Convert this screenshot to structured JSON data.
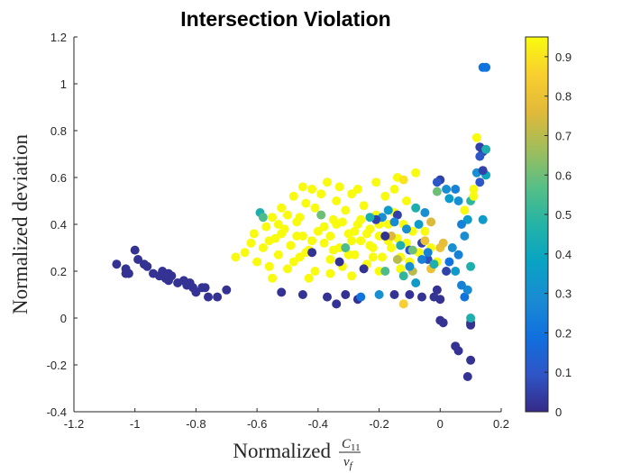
{
  "chart_data": {
    "type": "scatter",
    "title": "Intersection Violation",
    "xlabel": "Normalized",
    "xlabel_fraction": {
      "numerator": "C",
      "numerator_sub": "11",
      "denominator": "v",
      "denominator_sub": "f"
    },
    "ylabel": "Normalized deviation",
    "xlim": [
      -1.2,
      0.2
    ],
    "ylim": [
      -0.4,
      1.2
    ],
    "x_ticks": [
      "-1.2",
      "-1",
      "-0.8",
      "-0.6",
      "-0.4",
      "-0.2",
      "0",
      "0.2"
    ],
    "y_ticks": [
      "-0.4",
      "-0.2",
      "0",
      "0.2",
      "0.4",
      "0.6",
      "0.8",
      "1",
      "1.2"
    ],
    "colorbar": {
      "min": 0,
      "max": 0.95,
      "colormap": "parula",
      "ticks": [
        "0",
        "0.1",
        "0.2",
        "0.3",
        "0.4",
        "0.5",
        "0.6",
        "0.7",
        "0.8",
        "0.9"
      ]
    },
    "grid": false,
    "points": [
      {
        "x": -1.06,
        "y": 0.23,
        "c": 0.02
      },
      {
        "x": -1.03,
        "y": 0.21,
        "c": 0.02
      },
      {
        "x": -1.03,
        "y": 0.19,
        "c": 0.02
      },
      {
        "x": -1.02,
        "y": 0.19,
        "c": 0.02
      },
      {
        "x": -1.0,
        "y": 0.29,
        "c": 0.02
      },
      {
        "x": -0.99,
        "y": 0.25,
        "c": 0.02
      },
      {
        "x": -0.97,
        "y": 0.23,
        "c": 0.02
      },
      {
        "x": -0.96,
        "y": 0.22,
        "c": 0.02
      },
      {
        "x": -0.94,
        "y": 0.19,
        "c": 0.02
      },
      {
        "x": -0.92,
        "y": 0.18,
        "c": 0.02
      },
      {
        "x": -0.91,
        "y": 0.2,
        "c": 0.02
      },
      {
        "x": -0.9,
        "y": 0.17,
        "c": 0.02
      },
      {
        "x": -0.89,
        "y": 0.19,
        "c": 0.02
      },
      {
        "x": -0.89,
        "y": 0.16,
        "c": 0.02
      },
      {
        "x": -0.88,
        "y": 0.18,
        "c": 0.02
      },
      {
        "x": -0.86,
        "y": 0.15,
        "c": 0.02
      },
      {
        "x": -0.84,
        "y": 0.16,
        "c": 0.02
      },
      {
        "x": -0.83,
        "y": 0.14,
        "c": 0.02
      },
      {
        "x": -0.82,
        "y": 0.15,
        "c": 0.02
      },
      {
        "x": -0.81,
        "y": 0.13,
        "c": 0.02
      },
      {
        "x": -0.8,
        "y": 0.11,
        "c": 0.02
      },
      {
        "x": -0.78,
        "y": 0.13,
        "c": 0.02
      },
      {
        "x": -0.77,
        "y": 0.13,
        "c": 0.02
      },
      {
        "x": -0.76,
        "y": 0.09,
        "c": 0.02
      },
      {
        "x": -0.73,
        "y": 0.09,
        "c": 0.02
      },
      {
        "x": -0.7,
        "y": 0.12,
        "c": 0.02
      },
      {
        "x": -0.67,
        "y": 0.26,
        "c": 0.95
      },
      {
        "x": -0.64,
        "y": 0.28,
        "c": 0.95
      },
      {
        "x": -0.62,
        "y": 0.32,
        "c": 0.95
      },
      {
        "x": -0.61,
        "y": 0.36,
        "c": 0.95
      },
      {
        "x": -0.6,
        "y": 0.24,
        "c": 0.95
      },
      {
        "x": -0.59,
        "y": 0.45,
        "c": 0.45
      },
      {
        "x": -0.58,
        "y": 0.3,
        "c": 0.95
      },
      {
        "x": -0.57,
        "y": 0.39,
        "c": 0.95
      },
      {
        "x": -0.56,
        "y": 0.22,
        "c": 0.95
      },
      {
        "x": -0.55,
        "y": 0.43,
        "c": 0.95
      },
      {
        "x": -0.54,
        "y": 0.34,
        "c": 0.95
      },
      {
        "x": -0.53,
        "y": 0.27,
        "c": 0.95
      },
      {
        "x": -0.52,
        "y": 0.47,
        "c": 0.95
      },
      {
        "x": -0.51,
        "y": 0.38,
        "c": 0.95
      },
      {
        "x": -0.5,
        "y": 0.21,
        "c": 0.95
      },
      {
        "x": -0.49,
        "y": 0.31,
        "c": 0.95
      },
      {
        "x": -0.48,
        "y": 0.52,
        "c": 0.95
      },
      {
        "x": -0.47,
        "y": 0.41,
        "c": 0.95
      },
      {
        "x": -0.46,
        "y": 0.26,
        "c": 0.95
      },
      {
        "x": -0.45,
        "y": 0.35,
        "c": 0.95
      },
      {
        "x": -0.44,
        "y": 0.49,
        "c": 0.95
      },
      {
        "x": -0.43,
        "y": 0.29,
        "c": 0.95
      },
      {
        "x": -0.42,
        "y": 0.55,
        "c": 0.95
      },
      {
        "x": -0.41,
        "y": 0.2,
        "c": 0.95
      },
      {
        "x": -0.4,
        "y": 0.37,
        "c": 0.95
      },
      {
        "x": -0.39,
        "y": 0.44,
        "c": 0.6
      },
      {
        "x": -0.38,
        "y": 0.32,
        "c": 0.95
      },
      {
        "x": -0.37,
        "y": 0.58,
        "c": 0.95
      },
      {
        "x": -0.36,
        "y": 0.25,
        "c": 0.95
      },
      {
        "x": -0.35,
        "y": 0.42,
        "c": 0.95
      },
      {
        "x": -0.34,
        "y": 0.5,
        "c": 0.95
      },
      {
        "x": -0.33,
        "y": 0.3,
        "c": 0.95
      },
      {
        "x": -0.32,
        "y": 0.22,
        "c": 0.95
      },
      {
        "x": -0.31,
        "y": 0.46,
        "c": 0.95
      },
      {
        "x": -0.3,
        "y": 0.36,
        "c": 0.95
      },
      {
        "x": -0.29,
        "y": 0.53,
        "c": 0.95
      },
      {
        "x": -0.28,
        "y": 0.27,
        "c": 0.95
      },
      {
        "x": -0.27,
        "y": 0.4,
        "c": 0.95
      },
      {
        "x": -0.26,
        "y": 0.33,
        "c": 0.95
      },
      {
        "x": -0.25,
        "y": 0.48,
        "c": 0.95
      },
      {
        "x": -0.24,
        "y": 0.23,
        "c": 0.95
      },
      {
        "x": -0.23,
        "y": 0.38,
        "c": 0.95
      },
      {
        "x": -0.22,
        "y": 0.3,
        "c": 0.95
      },
      {
        "x": -0.21,
        "y": 0.44,
        "c": 0.95
      },
      {
        "x": -0.2,
        "y": 0.35,
        "c": 0.95
      },
      {
        "x": -0.19,
        "y": 0.26,
        "c": 0.95
      },
      {
        "x": -0.18,
        "y": 0.52,
        "c": 0.95
      },
      {
        "x": -0.17,
        "y": 0.4,
        "c": 0.95
      },
      {
        "x": -0.16,
        "y": 0.3,
        "c": 0.95
      },
      {
        "x": -0.15,
        "y": 0.45,
        "c": 0.95
      },
      {
        "x": -0.14,
        "y": 0.34,
        "c": 0.95
      },
      {
        "x": -0.13,
        "y": 0.26,
        "c": 0.95
      },
      {
        "x": -0.12,
        "y": 0.4,
        "c": 0.95
      },
      {
        "x": -0.11,
        "y": 0.32,
        "c": 0.95
      },
      {
        "x": -0.1,
        "y": 0.24,
        "c": 0.95
      },
      {
        "x": -0.09,
        "y": 0.37,
        "c": 0.95
      },
      {
        "x": -0.5,
        "y": 0.44,
        "c": 0.95
      },
      {
        "x": -0.47,
        "y": 0.35,
        "c": 0.95
      },
      {
        "x": -0.44,
        "y": 0.28,
        "c": 0.95
      },
      {
        "x": -0.41,
        "y": 0.47,
        "c": 0.95
      },
      {
        "x": -0.38,
        "y": 0.39,
        "c": 0.95
      },
      {
        "x": -0.35,
        "y": 0.29,
        "c": 0.95
      },
      {
        "x": -0.32,
        "y": 0.41,
        "c": 0.95
      },
      {
        "x": -0.29,
        "y": 0.33,
        "c": 0.95
      },
      {
        "x": -0.26,
        "y": 0.42,
        "c": 0.95
      },
      {
        "x": -0.23,
        "y": 0.31,
        "c": 0.95
      },
      {
        "x": -0.2,
        "y": 0.4,
        "c": 0.95
      },
      {
        "x": -0.17,
        "y": 0.33,
        "c": 0.95
      },
      {
        "x": -0.53,
        "y": 0.4,
        "c": 0.95
      },
      {
        "x": -0.56,
        "y": 0.33,
        "c": 0.95
      },
      {
        "x": -0.48,
        "y": 0.24,
        "c": 0.95
      },
      {
        "x": -0.42,
        "y": 0.33,
        "c": 0.95
      },
      {
        "x": -0.36,
        "y": 0.35,
        "c": 0.95
      },
      {
        "x": -0.3,
        "y": 0.27,
        "c": 0.95
      },
      {
        "x": -0.24,
        "y": 0.36,
        "c": 0.95
      },
      {
        "x": -0.45,
        "y": 0.56,
        "c": 0.95
      },
      {
        "x": -0.39,
        "y": 0.53,
        "c": 0.95
      },
      {
        "x": -0.33,
        "y": 0.56,
        "c": 0.95
      },
      {
        "x": -0.27,
        "y": 0.55,
        "c": 0.95
      },
      {
        "x": -0.21,
        "y": 0.58,
        "c": 0.95
      },
      {
        "x": -0.15,
        "y": 0.55,
        "c": 0.95
      },
      {
        "x": -0.58,
        "y": 0.43,
        "c": 0.55
      },
      {
        "x": -0.52,
        "y": 0.36,
        "c": 0.95
      },
      {
        "x": -0.46,
        "y": 0.43,
        "c": 0.95
      },
      {
        "x": -0.34,
        "y": 0.4,
        "c": 0.95
      },
      {
        "x": -0.28,
        "y": 0.37,
        "c": 0.95
      },
      {
        "x": -0.22,
        "y": 0.26,
        "c": 0.95
      },
      {
        "x": -0.43,
        "y": 0.17,
        "c": 0.95
      },
      {
        "x": -0.36,
        "y": 0.19,
        "c": 0.95
      },
      {
        "x": -0.29,
        "y": 0.18,
        "c": 0.95
      },
      {
        "x": -0.55,
        "y": 0.17,
        "c": 0.95
      },
      {
        "x": -0.2,
        "y": 0.2,
        "c": 0.95
      },
      {
        "x": -0.13,
        "y": 0.21,
        "c": 0.95
      },
      {
        "x": -0.07,
        "y": 0.28,
        "c": 0.95
      },
      {
        "x": -0.05,
        "y": 0.37,
        "c": 0.95
      },
      {
        "x": -0.03,
        "y": 0.3,
        "c": 0.95
      },
      {
        "x": -0.01,
        "y": 0.24,
        "c": 0.95
      },
      {
        "x": -0.11,
        "y": 0.5,
        "c": 0.95
      },
      {
        "x": -0.08,
        "y": 0.62,
        "c": 0.95
      },
      {
        "x": -0.14,
        "y": 0.6,
        "c": 0.95
      },
      {
        "x": -0.12,
        "y": 0.59,
        "c": 0.9
      },
      {
        "x": 0.0,
        "y": 0.3,
        "c": 0.8
      },
      {
        "x": 0.01,
        "y": 0.32,
        "c": 0.78
      },
      {
        "x": -0.12,
        "y": 0.06,
        "c": 0.85
      },
      {
        "x": -0.16,
        "y": 0.35,
        "c": 0.75
      },
      {
        "x": -0.09,
        "y": 0.2,
        "c": 0.7
      },
      {
        "x": -0.03,
        "y": 0.21,
        "c": 0.8
      },
      {
        "x": -0.42,
        "y": 0.28,
        "c": 0.02
      },
      {
        "x": -0.33,
        "y": 0.24,
        "c": 0.02
      },
      {
        "x": -0.25,
        "y": 0.21,
        "c": 0.02
      },
      {
        "x": -0.18,
        "y": 0.35,
        "c": 0.02
      },
      {
        "x": -0.14,
        "y": 0.44,
        "c": 0.05
      },
      {
        "x": -0.1,
        "y": 0.29,
        "c": 0.1
      },
      {
        "x": -0.06,
        "y": 0.32,
        "c": 0.05
      },
      {
        "x": -0.04,
        "y": 0.25,
        "c": 0.08
      },
      {
        "x": 0.02,
        "y": 0.2,
        "c": 0.05
      },
      {
        "x": -0.52,
        "y": 0.11,
        "c": 0.02
      },
      {
        "x": -0.45,
        "y": 0.1,
        "c": 0.02
      },
      {
        "x": -0.37,
        "y": 0.09,
        "c": 0.02
      },
      {
        "x": -0.34,
        "y": 0.06,
        "c": 0.02
      },
      {
        "x": -0.31,
        "y": 0.1,
        "c": 0.02
      },
      {
        "x": -0.27,
        "y": 0.08,
        "c": 0.02
      },
      {
        "x": -0.26,
        "y": 0.09,
        "c": 0.2
      },
      {
        "x": -0.15,
        "y": 0.1,
        "c": 0.02
      },
      {
        "x": -0.1,
        "y": 0.1,
        "c": 0.02
      },
      {
        "x": -0.06,
        "y": 0.09,
        "c": 0.02
      },
      {
        "x": -0.02,
        "y": 0.09,
        "c": 0.02
      },
      {
        "x": -0.01,
        "y": 0.12,
        "c": 0.02
      },
      {
        "x": 0.0,
        "y": 0.08,
        "c": 0.02
      },
      {
        "x": 0.0,
        "y": -0.01,
        "c": 0.02
      },
      {
        "x": 0.01,
        "y": -0.02,
        "c": 0.02
      },
      {
        "x": 0.05,
        "y": -0.12,
        "c": 0.02
      },
      {
        "x": 0.06,
        "y": -0.14,
        "c": 0.02
      },
      {
        "x": 0.1,
        "y": -0.18,
        "c": 0.02
      },
      {
        "x": 0.09,
        "y": -0.25,
        "c": 0.02
      },
      {
        "x": 0.1,
        "y": -0.03,
        "c": 0.02
      },
      {
        "x": 0.1,
        "y": -0.02,
        "c": 0.02
      },
      {
        "x": 0.1,
        "y": 0.0,
        "c": 0.45
      },
      {
        "x": 0.08,
        "y": 0.09,
        "c": 0.2
      },
      {
        "x": 0.09,
        "y": 0.12,
        "c": 0.28
      },
      {
        "x": 0.1,
        "y": 0.22,
        "c": 0.45
      },
      {
        "x": 0.08,
        "y": 0.35,
        "c": 0.3
      },
      {
        "x": 0.09,
        "y": 0.42,
        "c": 0.35
      },
      {
        "x": 0.07,
        "y": 0.4,
        "c": 0.25
      },
      {
        "x": 0.06,
        "y": 0.5,
        "c": 0.3
      },
      {
        "x": 0.05,
        "y": 0.55,
        "c": 0.25
      },
      {
        "x": 0.03,
        "y": 0.51,
        "c": 0.35
      },
      {
        "x": 0.02,
        "y": 0.55,
        "c": 0.3
      },
      {
        "x": 0.0,
        "y": 0.59,
        "c": 0.05
      },
      {
        "x": -0.01,
        "y": 0.58,
        "c": 0.1
      },
      {
        "x": -0.01,
        "y": 0.54,
        "c": 0.6
      },
      {
        "x": 0.08,
        "y": 0.46,
        "c": 0.95
      },
      {
        "x": 0.1,
        "y": 0.5,
        "c": 0.5
      },
      {
        "x": 0.11,
        "y": 0.55,
        "c": 0.95
      },
      {
        "x": 0.12,
        "y": 0.62,
        "c": 0.3
      },
      {
        "x": 0.13,
        "y": 0.58,
        "c": 0.1
      },
      {
        "x": 0.14,
        "y": 0.42,
        "c": 0.35
      },
      {
        "x": 0.15,
        "y": 0.61,
        "c": 0.4
      },
      {
        "x": 0.14,
        "y": 0.63,
        "c": 0.05
      },
      {
        "x": 0.13,
        "y": 0.73,
        "c": 0.05
      },
      {
        "x": 0.14,
        "y": 0.71,
        "c": 0.05
      },
      {
        "x": 0.15,
        "y": 0.72,
        "c": 0.45
      },
      {
        "x": 0.13,
        "y": 0.69,
        "c": 0.1
      },
      {
        "x": 0.14,
        "y": 1.07,
        "c": 0.2
      },
      {
        "x": 0.15,
        "y": 1.07,
        "c": 0.2
      },
      {
        "x": 0.12,
        "y": 0.77,
        "c": 0.95
      },
      {
        "x": 0.11,
        "y": 0.52,
        "c": 0.95
      },
      {
        "x": -0.05,
        "y": 0.45,
        "c": 0.3
      },
      {
        "x": -0.07,
        "y": 0.4,
        "c": 0.35
      },
      {
        "x": -0.08,
        "y": 0.47,
        "c": 0.45
      },
      {
        "x": -0.06,
        "y": 0.25,
        "c": 0.25
      },
      {
        "x": -0.04,
        "y": 0.28,
        "c": 0.25
      },
      {
        "x": -0.02,
        "y": 0.23,
        "c": 0.45
      },
      {
        "x": 0.03,
        "y": 0.24,
        "c": 0.2
      },
      {
        "x": 0.04,
        "y": 0.3,
        "c": 0.3
      },
      {
        "x": 0.06,
        "y": 0.27,
        "c": 0.25
      },
      {
        "x": 0.05,
        "y": 0.2,
        "c": 0.35
      },
      {
        "x": 0.07,
        "y": 0.14,
        "c": 0.25
      },
      {
        "x": -0.11,
        "y": 0.38,
        "c": 0.3
      },
      {
        "x": -0.13,
        "y": 0.31,
        "c": 0.45
      },
      {
        "x": -0.15,
        "y": 0.41,
        "c": 0.28
      },
      {
        "x": -0.17,
        "y": 0.46,
        "c": 0.35
      },
      {
        "x": -0.19,
        "y": 0.43,
        "c": 0.3
      },
      {
        "x": -0.21,
        "y": 0.42,
        "c": 0.05
      },
      {
        "x": -0.23,
        "y": 0.43,
        "c": 0.45
      },
      {
        "x": -0.09,
        "y": 0.29,
        "c": 0.6
      },
      {
        "x": -0.08,
        "y": 0.15,
        "c": 0.35
      },
      {
        "x": -0.12,
        "y": 0.18,
        "c": 0.5
      },
      {
        "x": -0.18,
        "y": 0.2,
        "c": 0.55
      },
      {
        "x": -0.31,
        "y": 0.3,
        "c": 0.55
      },
      {
        "x": -0.1,
        "y": 0.22,
        "c": 0.3
      },
      {
        "x": -0.2,
        "y": 0.1,
        "c": 0.3
      },
      {
        "x": -0.05,
        "y": 0.33,
        "c": 0.8
      },
      {
        "x": -0.03,
        "y": 0.41,
        "c": 0.75
      },
      {
        "x": -0.14,
        "y": 0.25,
        "c": 0.7
      }
    ]
  }
}
